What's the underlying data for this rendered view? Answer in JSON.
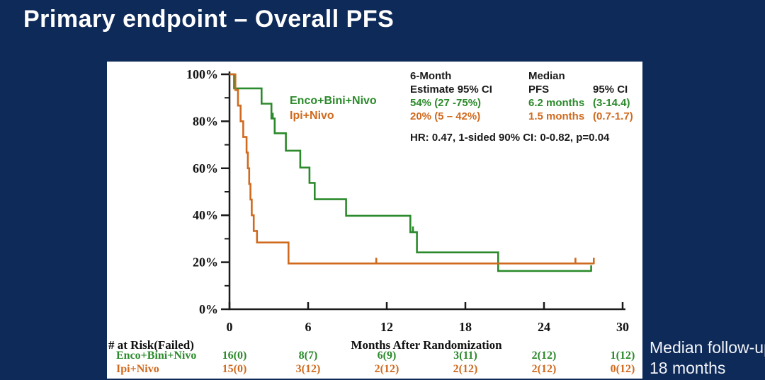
{
  "slide": {
    "title": "Primary endpoint – Overall PFS"
  },
  "footnote": {
    "line1": "Median follow-up:",
    "line2": "18 months"
  },
  "colors": {
    "background": "#0e2a59",
    "panel": "#ffffff",
    "green": "#2b8a2b",
    "orange": "#d06a1e",
    "axis": "#1a1a1a",
    "title_text": "#ffffff"
  },
  "stats": {
    "col1": {
      "h1": "6-Month",
      "h2": "Estimate 95% CI",
      "green": "54% (27 -75%)",
      "orange": "20% (5 – 42%)"
    },
    "col2": {
      "h1": "Median",
      "h2": "PFS",
      "green": "6.2 months",
      "orange": "1.5 months"
    },
    "col3": {
      "h2": "95% CI",
      "green": "(3-14.4)",
      "orange": "(0.7-1.7)"
    },
    "hr_line": "HR: 0.47, 1-sided 90% CI: 0-0.82, p=0.04"
  },
  "chart_data": {
    "type": "line",
    "subtype": "kaplan-meier-step",
    "title": "",
    "xlabel": "Months After Randomization",
    "ylabel": "",
    "xlim": [
      0,
      30
    ],
    "ylim": [
      0,
      100
    ],
    "xticks": [
      0,
      6,
      12,
      18,
      24,
      30
    ],
    "ytick_values": [
      0,
      20,
      40,
      60,
      80,
      100
    ],
    "ytick_labels": [
      "0%",
      "20%",
      "40%",
      "60%",
      "80%",
      "100%"
    ],
    "yticks_minor": [
      10,
      30,
      50,
      70,
      90
    ],
    "grid": false,
    "legend_position": "inside-top-left",
    "series": [
      {
        "name": "Enco+Bini+Nivo",
        "color": "#2b8a2b",
        "steps": [
          [
            0,
            100
          ],
          [
            0.35,
            94.0
          ],
          [
            2.45,
            87.5
          ],
          [
            3.2,
            81.2
          ],
          [
            3.45,
            74.9
          ],
          [
            4.3,
            67.5
          ],
          [
            5.4,
            60.3
          ],
          [
            6.1,
            53.8
          ],
          [
            6.5,
            46.8
          ],
          [
            8.9,
            39.8
          ],
          [
            13.8,
            32.8
          ],
          [
            14.3,
            24.2
          ],
          [
            20.5,
            16.3
          ]
        ],
        "end_month": 27.6,
        "censors": [
          [
            3.3,
            81.2
          ],
          [
            14.0,
            32.8
          ],
          [
            27.6,
            16.3
          ]
        ]
      },
      {
        "name": "Ipi+Nivo",
        "color": "#d06a1e",
        "steps": [
          [
            0,
            100
          ],
          [
            0.45,
            93.3
          ],
          [
            0.65,
            86.7
          ],
          [
            0.85,
            80
          ],
          [
            1.05,
            73.3
          ],
          [
            1.3,
            66.7
          ],
          [
            1.4,
            60
          ],
          [
            1.5,
            53.3
          ],
          [
            1.6,
            46.7
          ],
          [
            1.7,
            40
          ],
          [
            1.85,
            33.3
          ],
          [
            2.1,
            28.4
          ],
          [
            4.5,
            19.5
          ]
        ],
        "end_month": 27.8,
        "censors": [
          [
            11.2,
            19.5
          ],
          [
            26.4,
            19.5
          ],
          [
            27.8,
            19.5
          ]
        ]
      }
    ],
    "at_risk": {
      "header": "# at Risk(Failed)",
      "rows": [
        {
          "name": "Enco+Bini+Nivo",
          "color": "#2b8a2b",
          "values": [
            "16(0)",
            "8(7)",
            "6(9)",
            "3(11)",
            "2(12)",
            "1(12)"
          ]
        },
        {
          "name": "Ipi+Nivo",
          "color": "#d06a1e",
          "values": [
            "15(0)",
            "3(12)",
            "2(12)",
            "2(12)",
            "2(12)",
            "0(12)"
          ]
        }
      ]
    }
  }
}
